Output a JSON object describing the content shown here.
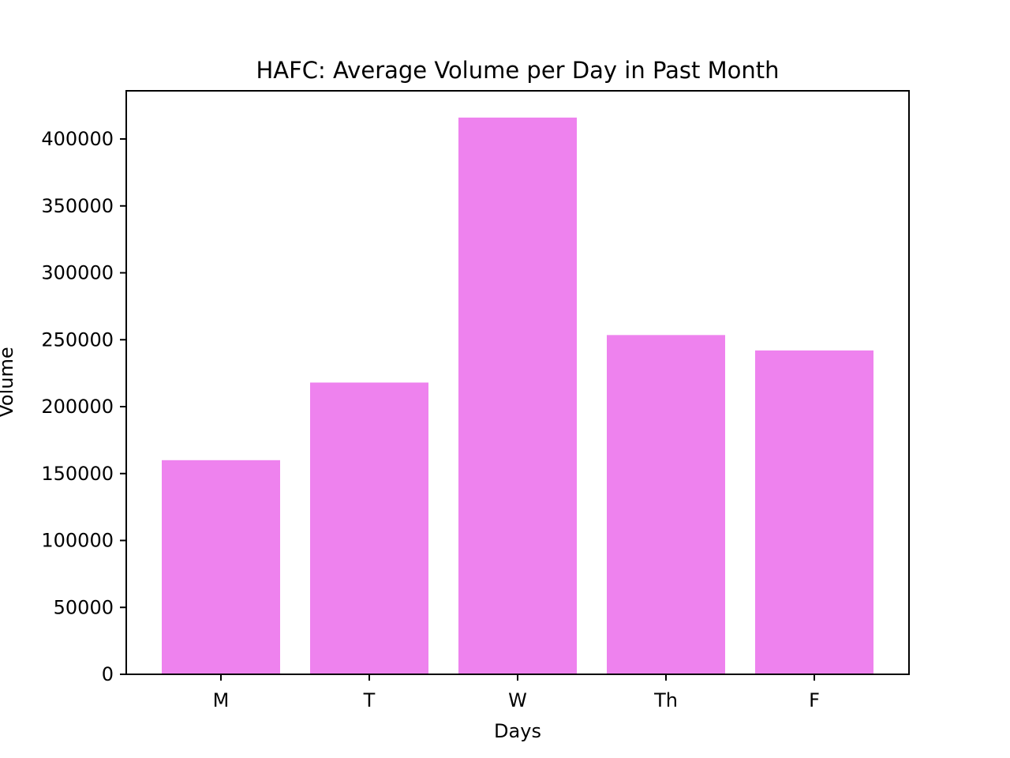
{
  "chart_data": {
    "type": "bar",
    "title": "HAFC: Average Volume per Day in Past Month",
    "xlabel": "Days",
    "ylabel": "Volume",
    "categories": [
      "M",
      "T",
      "W",
      "Th",
      "F"
    ],
    "values": [
      160000,
      218000,
      416000,
      253500,
      242000
    ],
    "ylim": [
      0,
      436000
    ],
    "yticks": [
      0,
      50000,
      100000,
      150000,
      200000,
      250000,
      300000,
      350000,
      400000
    ],
    "ytick_labels": [
      "0",
      "50000",
      "100000",
      "150000",
      "200000",
      "250000",
      "300000",
      "350000",
      "400000"
    ],
    "bar_color": "#ee82ee",
    "grid": false,
    "legend": "none"
  }
}
